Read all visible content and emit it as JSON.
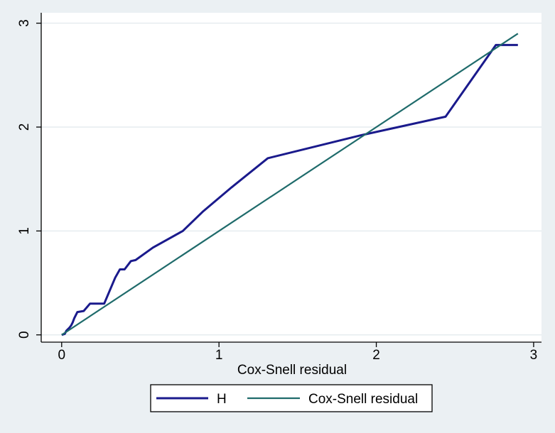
{
  "chart_data": {
    "type": "line",
    "title": "",
    "xlabel": "Cox-Snell residual",
    "ylabel": "",
    "xlim": [
      -0.13,
      3.05
    ],
    "ylim": [
      -0.07,
      3.1
    ],
    "x_ticks": [
      0,
      1,
      2,
      3
    ],
    "y_ticks": [
      0,
      1,
      2,
      3
    ],
    "grid": "horizontal",
    "legend_position": "bottom",
    "series": [
      {
        "name": "H",
        "color": "#1a1a8c",
        "step": false,
        "points": [
          [
            0.0,
            0.0
          ],
          [
            0.02,
            0.01
          ],
          [
            0.03,
            0.04
          ],
          [
            0.05,
            0.07
          ],
          [
            0.06,
            0.09
          ],
          [
            0.07,
            0.12
          ],
          [
            0.08,
            0.16
          ],
          [
            0.09,
            0.19
          ],
          [
            0.1,
            0.22
          ],
          [
            0.14,
            0.23
          ],
          [
            0.18,
            0.3
          ],
          [
            0.27,
            0.3
          ],
          [
            0.34,
            0.55
          ],
          [
            0.37,
            0.63
          ],
          [
            0.4,
            0.63
          ],
          [
            0.44,
            0.71
          ],
          [
            0.47,
            0.72
          ],
          [
            0.58,
            0.84
          ],
          [
            0.77,
            1.0
          ],
          [
            0.9,
            1.19
          ],
          [
            1.08,
            1.42
          ],
          [
            1.31,
            1.7
          ],
          [
            1.9,
            1.92
          ],
          [
            2.44,
            2.1
          ],
          [
            2.76,
            2.79
          ],
          [
            2.9,
            2.79
          ]
        ]
      },
      {
        "name": "Cox-Snell residual",
        "color": "#1f6b6b",
        "points": [
          [
            0,
            0
          ],
          [
            2.9,
            2.9
          ]
        ]
      }
    ]
  }
}
